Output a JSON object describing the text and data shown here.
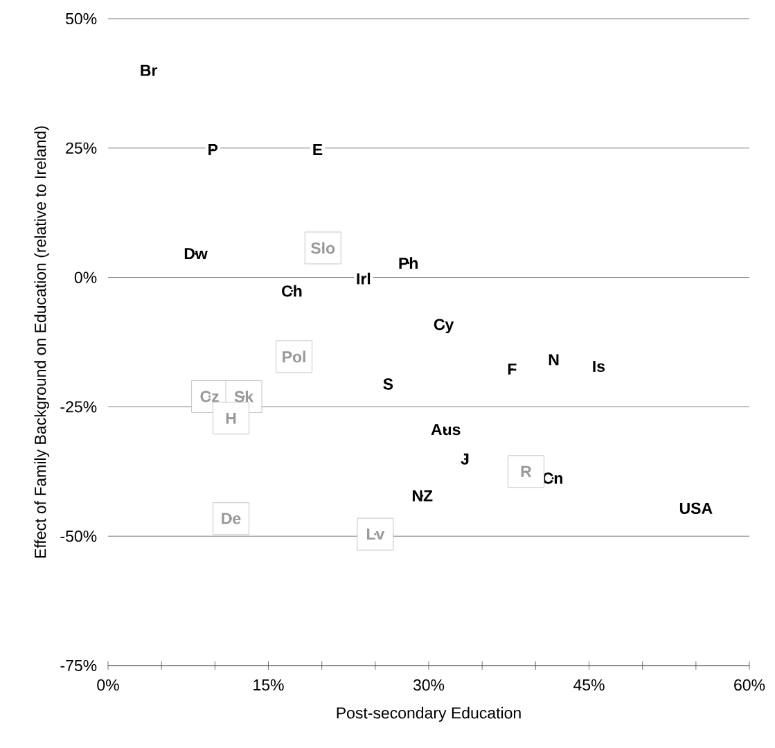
{
  "chart_data": {
    "type": "scatter",
    "xlabel": "Post-secondary Education",
    "ylabel": "Effect of Family Background on Education (relative to Ireland)",
    "xlim": [
      0,
      60
    ],
    "ylim": [
      -75,
      50
    ],
    "xticks": [
      {
        "value": 0,
        "label": "0%"
      },
      {
        "value": 5,
        "label": null
      },
      {
        "value": 10,
        "label": null
      },
      {
        "value": 15,
        "label": "15%"
      },
      {
        "value": 20,
        "label": null
      },
      {
        "value": 25,
        "label": null
      },
      {
        "value": 30,
        "label": "30%"
      },
      {
        "value": 35,
        "label": null
      },
      {
        "value": 40,
        "label": null
      },
      {
        "value": 45,
        "label": "45%"
      },
      {
        "value": 50,
        "label": null
      },
      {
        "value": 55,
        "label": null
      },
      {
        "value": 60,
        "label": "60%"
      }
    ],
    "yticks": [
      {
        "value": -75,
        "label": "-75%"
      },
      {
        "value": -50,
        "label": "-50%"
      },
      {
        "value": -25,
        "label": "-25%"
      },
      {
        "value": 0,
        "label": "0%"
      },
      {
        "value": 25,
        "label": "25%"
      },
      {
        "value": 50,
        "label": "50%"
      }
    ],
    "grid": "y",
    "series": [
      {
        "color": "#000000",
        "marker": "circle",
        "x": [
          3.8,
          9.8,
          19.6,
          8.2,
          28.1,
          23.9,
          17.2,
          31.4,
          41.7,
          45.9,
          37.8,
          26.2,
          31.6,
          33.4,
          41.6,
          29.4,
          55.0
        ],
        "values": [
          40.0,
          24.7,
          24.7,
          4.6,
          2.8,
          -0.2,
          -2.6,
          -9.4,
          -15.9,
          -17.2,
          -17.7,
          -20.6,
          -29.4,
          -35.1,
          -38.8,
          -42.2,
          -44.6
        ],
        "value_labels": [
          "Br",
          "P",
          "E",
          "Dw",
          "Ph",
          "Irl",
          "Ch",
          "Cy",
          "N",
          "Is",
          "F",
          "S",
          "Aus",
          "J",
          "Cn",
          "NZ",
          "USA"
        ]
      },
      {
        "color": "#999999",
        "marker": "square",
        "x": [
          20.1,
          17.4,
          9.5,
          12.7,
          11.5,
          39.1,
          11.5,
          25.0
        ],
        "values": [
          5.7,
          -15.3,
          -23.0,
          -23.0,
          -27.2,
          -37.5,
          -46.6,
          -49.6
        ],
        "value_labels": [
          "Slo",
          "Pol",
          "Cz",
          "Sk",
          "H",
          "R",
          "De",
          "Lv"
        ]
      }
    ]
  }
}
